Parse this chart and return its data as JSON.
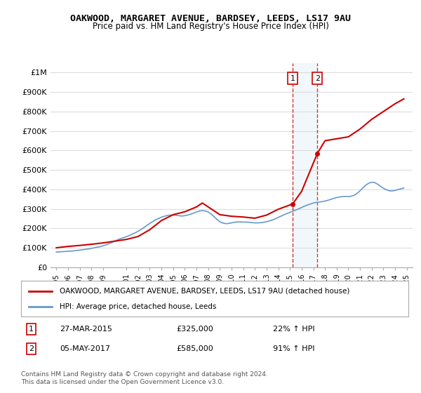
{
  "title": "OAKWOOD, MARGARET AVENUE, BARDSEY, LEEDS, LS17 9AU",
  "subtitle": "Price paid vs. HM Land Registry's House Price Index (HPI)",
  "ylabel_ticks": [
    "£0",
    "£100K",
    "£200K",
    "£300K",
    "£400K",
    "£500K",
    "£600K",
    "£700K",
    "£800K",
    "£900K",
    "£1M"
  ],
  "ytick_values": [
    0,
    100000,
    200000,
    300000,
    400000,
    500000,
    600000,
    700000,
    800000,
    900000,
    1000000
  ],
  "ylim": [
    0,
    1050000
  ],
  "xlim_start": 1994.5,
  "xlim_end": 2025.5,
  "xtick_years": [
    1995,
    1996,
    1997,
    1998,
    1999,
    2001,
    2002,
    2003,
    2004,
    2005,
    2006,
    2007,
    2008,
    2009,
    2010,
    2011,
    2012,
    2013,
    2014,
    2015,
    2016,
    2017,
    2018,
    2019,
    2020,
    2021,
    2022,
    2023,
    2024,
    2025
  ],
  "red_line_color": "#cc0000",
  "blue_line_color": "#6699cc",
  "grid_color": "#dddddd",
  "transaction_1": {
    "date": "27-MAR-2015",
    "price": 325000,
    "x": 2015.23,
    "label": "1",
    "pct": "22%"
  },
  "transaction_2": {
    "date": "05-MAY-2017",
    "price": 585000,
    "x": 2017.35,
    "label": "2",
    "pct": "91%"
  },
  "vline_color": "#cc0000",
  "shade_color": "#cce0f0",
  "legend_red_label": "OAKWOOD, MARGARET AVENUE, BARDSEY, LEEDS, LS17 9AU (detached house)",
  "legend_blue_label": "HPI: Average price, detached house, Leeds",
  "table_row1": [
    "1",
    "27-MAR-2015",
    "£325,000",
    "22% ↑ HPI"
  ],
  "table_row2": [
    "2",
    "05-MAY-2017",
    "£585,000",
    "91% ↑ HPI"
  ],
  "footer": "Contains HM Land Registry data © Crown copyright and database right 2024.\nThis data is licensed under the Open Government Licence v3.0.",
  "hpi_years": [
    1995.0,
    1995.25,
    1995.5,
    1995.75,
    1996.0,
    1996.25,
    1996.5,
    1996.75,
    1997.0,
    1997.25,
    1997.5,
    1997.75,
    1998.0,
    1998.25,
    1998.5,
    1998.75,
    1999.0,
    1999.25,
    1999.5,
    1999.75,
    2000.0,
    2000.25,
    2000.5,
    2000.75,
    2001.0,
    2001.25,
    2001.5,
    2001.75,
    2002.0,
    2002.25,
    2002.5,
    2002.75,
    2003.0,
    2003.25,
    2003.5,
    2003.75,
    2004.0,
    2004.25,
    2004.5,
    2004.75,
    2005.0,
    2005.25,
    2005.5,
    2005.75,
    2006.0,
    2006.25,
    2006.5,
    2006.75,
    2007.0,
    2007.25,
    2007.5,
    2007.75,
    2008.0,
    2008.25,
    2008.5,
    2008.75,
    2009.0,
    2009.25,
    2009.5,
    2009.75,
    2010.0,
    2010.25,
    2010.5,
    2010.75,
    2011.0,
    2011.25,
    2011.5,
    2011.75,
    2012.0,
    2012.25,
    2012.5,
    2012.75,
    2013.0,
    2013.25,
    2013.5,
    2013.75,
    2014.0,
    2014.25,
    2014.5,
    2014.75,
    2015.0,
    2015.25,
    2015.5,
    2015.75,
    2016.0,
    2016.25,
    2016.5,
    2016.75,
    2017.0,
    2017.25,
    2017.5,
    2017.75,
    2018.0,
    2018.25,
    2018.5,
    2018.75,
    2019.0,
    2019.25,
    2019.5,
    2019.75,
    2020.0,
    2020.25,
    2020.5,
    2020.75,
    2021.0,
    2021.25,
    2021.5,
    2021.75,
    2022.0,
    2022.25,
    2022.5,
    2022.75,
    2023.0,
    2023.25,
    2023.5,
    2023.75,
    2024.0,
    2024.25,
    2024.5,
    2024.75
  ],
  "hpi_values": [
    78000,
    79000,
    80000,
    81000,
    82000,
    83000,
    84500,
    86000,
    88000,
    90000,
    92000,
    94000,
    97000,
    100000,
    103000,
    106000,
    110000,
    115000,
    121000,
    127000,
    134000,
    141000,
    147000,
    152000,
    157000,
    163000,
    170000,
    177000,
    185000,
    194000,
    204000,
    215000,
    225000,
    235000,
    244000,
    251000,
    257000,
    262000,
    266000,
    268000,
    268000,
    267000,
    265000,
    263000,
    265000,
    268000,
    273000,
    278000,
    284000,
    289000,
    291000,
    289000,
    284000,
    274000,
    260000,
    246000,
    234000,
    227000,
    224000,
    225000,
    228000,
    231000,
    233000,
    233000,
    232000,
    232000,
    231000,
    229000,
    228000,
    228000,
    229000,
    231000,
    234000,
    238000,
    243000,
    249000,
    256000,
    263000,
    270000,
    276000,
    282000,
    288000,
    294000,
    300000,
    307000,
    314000,
    320000,
    325000,
    330000,
    333000,
    335000,
    337000,
    340000,
    344000,
    349000,
    354000,
    358000,
    361000,
    363000,
    364000,
    363000,
    365000,
    370000,
    379000,
    393000,
    408000,
    422000,
    432000,
    437000,
    435000,
    427000,
    416000,
    406000,
    398000,
    393000,
    392000,
    395000,
    399000,
    403000,
    407000
  ],
  "red_years": [
    1995.0,
    1996.0,
    1997.0,
    1998.0,
    1999.0,
    2000.0,
    2001.0,
    2002.0,
    2003.0,
    2004.0,
    2005.0,
    2006.0,
    2007.0,
    2007.5,
    2008.0,
    2009.0,
    2010.0,
    2011.0,
    2012.0,
    2013.0,
    2014.0,
    2015.23,
    2016.0,
    2017.35,
    2018.0,
    2019.0,
    2020.0,
    2021.0,
    2022.0,
    2023.0,
    2024.0,
    2024.75
  ],
  "red_values": [
    100000,
    107000,
    112000,
    118000,
    125000,
    134000,
    143000,
    158000,
    193000,
    240000,
    270000,
    285000,
    310000,
    330000,
    310000,
    270000,
    262000,
    258000,
    252000,
    268000,
    298000,
    325000,
    390000,
    585000,
    650000,
    660000,
    670000,
    710000,
    760000,
    800000,
    840000,
    865000
  ]
}
